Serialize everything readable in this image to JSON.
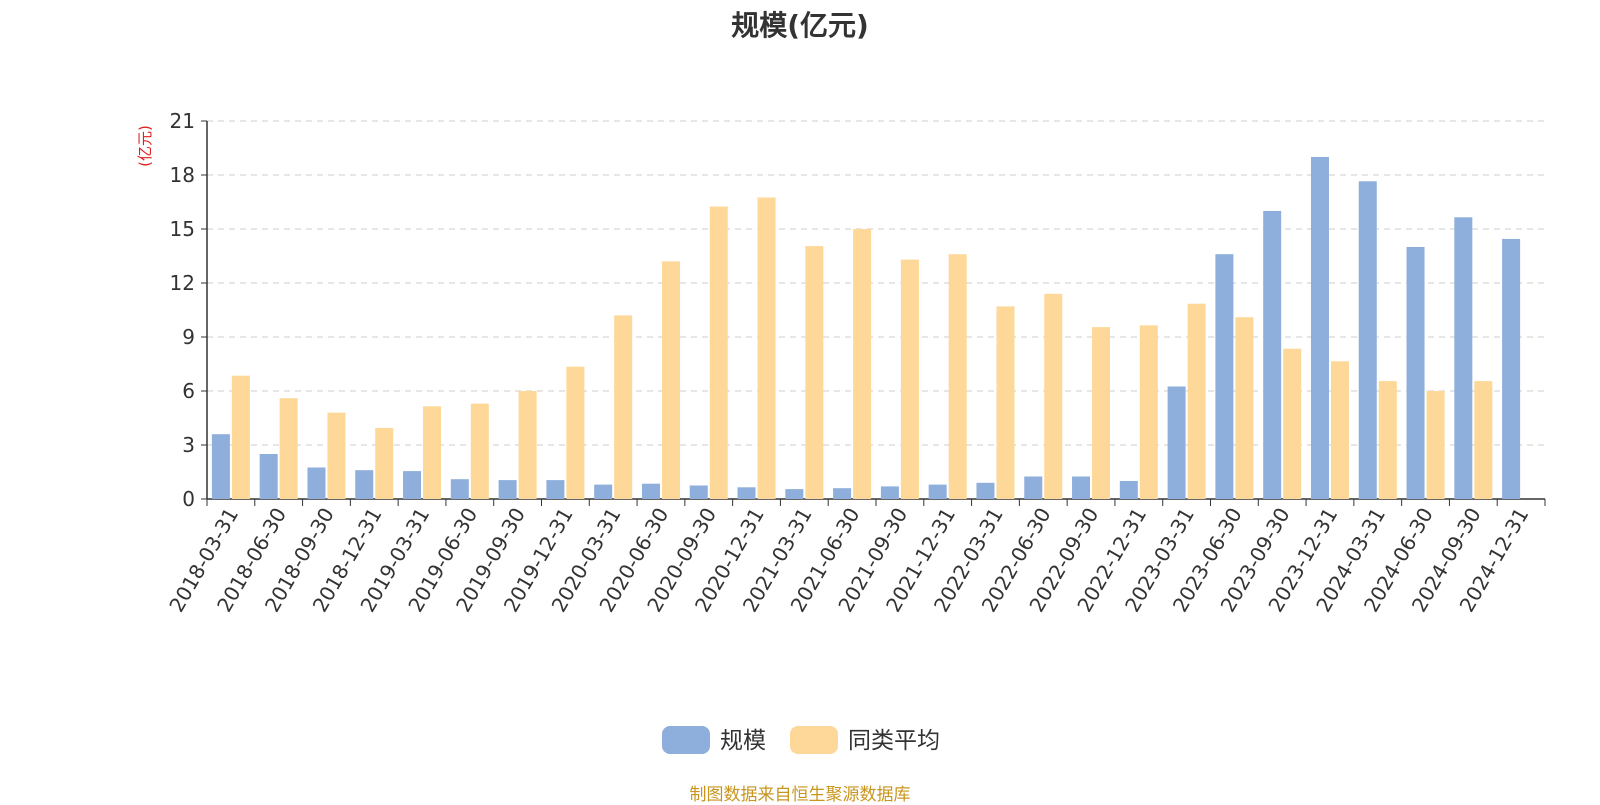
{
  "title": "规模(亿元)",
  "y_unit_label": "(亿元)",
  "source_note": "制图数据来自恒生聚源数据库",
  "colors": {
    "scale": "#8eaedc",
    "peer_avg": "#fdd898",
    "axis": "#333333",
    "grid": "#cccccc",
    "unit_label": "#e02020",
    "source": "#c8961e"
  },
  "chart_data": {
    "type": "bar",
    "title": "规模(亿元)",
    "ylabel": "(亿元)",
    "xlabel": "",
    "ylim": [
      0,
      21
    ],
    "yticks": [
      0,
      3,
      6,
      9,
      12,
      15,
      18,
      21
    ],
    "grid": true,
    "legend_position": "bottom-center",
    "categories": [
      "2018-03-31",
      "2018-06-30",
      "2018-09-30",
      "2018-12-31",
      "2019-03-31",
      "2019-06-30",
      "2019-09-30",
      "2019-12-31",
      "2020-03-31",
      "2020-06-30",
      "2020-09-30",
      "2020-12-31",
      "2021-03-31",
      "2021-06-30",
      "2021-09-30",
      "2021-12-31",
      "2022-03-31",
      "2022-06-30",
      "2022-09-30",
      "2022-12-31",
      "2023-03-31",
      "2023-06-30",
      "2023-09-30",
      "2023-12-31",
      "2024-03-31",
      "2024-06-30",
      "2024-09-30",
      "2024-12-31"
    ],
    "series": [
      {
        "name": "规模",
        "values": [
          3.6,
          2.5,
          1.75,
          1.6,
          1.55,
          1.1,
          1.05,
          1.05,
          0.8,
          0.85,
          0.75,
          0.65,
          0.55,
          0.6,
          0.7,
          0.8,
          0.9,
          1.25,
          1.25,
          1.0,
          6.25,
          13.6,
          16.0,
          19.0,
          17.65,
          14.0,
          15.65,
          14.45
        ]
      },
      {
        "name": "同类平均",
        "values": [
          6.85,
          5.6,
          4.8,
          3.95,
          5.15,
          5.3,
          6.0,
          7.35,
          10.2,
          13.2,
          16.25,
          16.75,
          14.05,
          15.0,
          13.3,
          13.6,
          10.7,
          11.4,
          9.55,
          9.65,
          10.85,
          10.1,
          8.35,
          7.65,
          6.55,
          6.0,
          6.55,
          null
        ]
      }
    ]
  }
}
